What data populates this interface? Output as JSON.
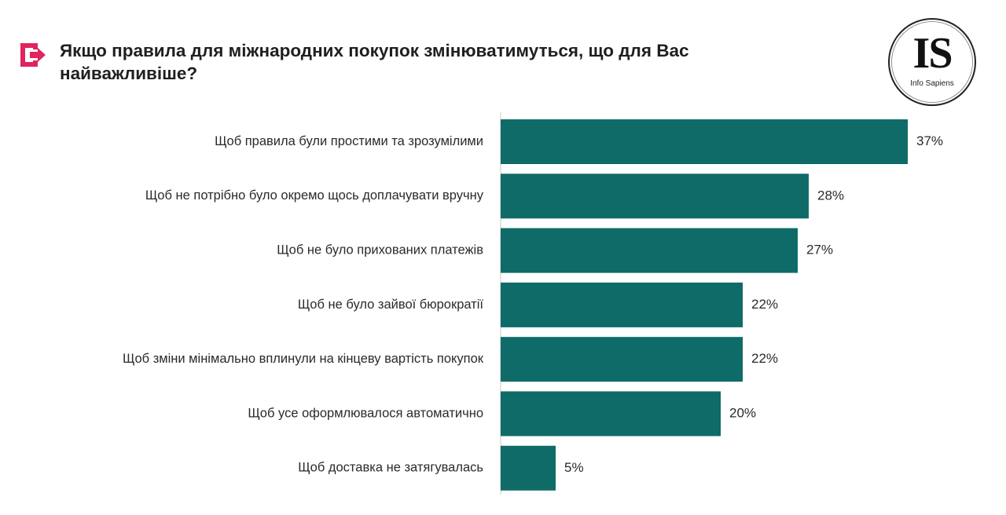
{
  "header": {
    "title": "Якщо правила для міжнародних покупок змінюватимуться, що для Вас найважливіше?",
    "logo_letters": "IS",
    "logo_sub": "Info Sapiens",
    "icon": "arrow-square-icon",
    "icon_color": "#e0245e"
  },
  "chart_data": {
    "type": "bar",
    "orientation": "horizontal",
    "title": "Якщо правила для міжнародних покупок змінюватимуться, що для Вас найважливіше?",
    "categories": [
      "Щоб правила були простими та зрозумілими",
      "Щоб не потрібно було окремо щось доплачувати вручну",
      "Щоб не було прихованих платежів",
      "Щоб не було зайвої бюрократії",
      "Щоб зміни мінімально вплинули на кінцеву вартість покупок",
      "Щоб усе оформлювалося автоматично",
      "Щоб доставка не затягувалась"
    ],
    "values": [
      37,
      28,
      27,
      22,
      22,
      20,
      5
    ],
    "value_labels": [
      "37%",
      "28%",
      "27%",
      "22%",
      "22%",
      "20%",
      "5%"
    ],
    "unit": "%",
    "bar_color": "#0f6b68",
    "xlabel": "",
    "ylabel": "",
    "grid": false
  }
}
